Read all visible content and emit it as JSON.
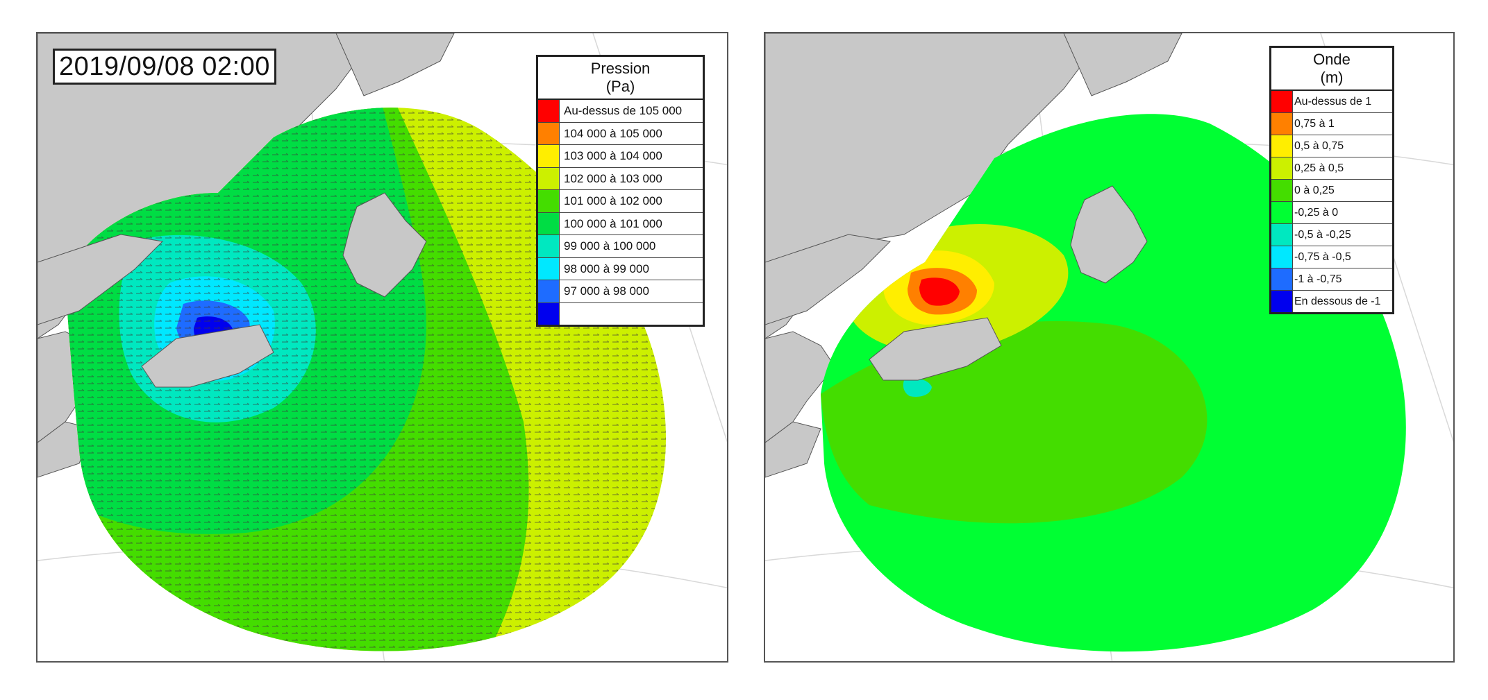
{
  "left_panel": {
    "timestamp": "2019/09/08 02:00",
    "legend": {
      "title_line1": "Pression",
      "title_line2": "(Pa)",
      "items": [
        {
          "label": "Au-dessus de 105 000",
          "color": "#ff0000"
        },
        {
          "label": "104 000 à 105 000",
          "color": "#ff8000"
        },
        {
          "label": "103 000 à 104 000",
          "color": "#ffee00"
        },
        {
          "label": "102 000 à 103 000",
          "color": "#ccf000"
        },
        {
          "label": "101 000 à 102 000",
          "color": "#44dd00"
        },
        {
          "label": "100 000 à 101 000",
          "color": "#00dd44"
        },
        {
          "label": "99 000 à 100 000",
          "color": "#00e8c0"
        },
        {
          "label": "98 000 à 99 000",
          "color": "#00e8ff"
        },
        {
          "label": "97 000 à 98 000",
          "color": "#1e6cff"
        },
        {
          "label": "",
          "color": "#0000ee"
        }
      ]
    }
  },
  "right_panel": {
    "legend": {
      "title_line1": "Onde",
      "title_line2": "(m)",
      "items": [
        {
          "label": "Au-dessus de 1",
          "color": "#ff0000"
        },
        {
          "label": "0,75 à 1",
          "color": "#ff8000"
        },
        {
          "label": "0,5 à 0,75",
          "color": "#ffee00"
        },
        {
          "label": "0,25 à 0,5",
          "color": "#ccf000"
        },
        {
          "label": "0 à 0,25",
          "color": "#44dd00"
        },
        {
          "label": "-0,25 à 0",
          "color": "#00ff33"
        },
        {
          "label": "-0,5 à -0,25",
          "color": "#00e8c0"
        },
        {
          "label": "-0,75 à -0,5",
          "color": "#00e8ff"
        },
        {
          "label": "-1 à -0,75",
          "color": "#1e6cff"
        },
        {
          "label": "En dessous de -1",
          "color": "#0000ee"
        }
      ]
    }
  },
  "colors": {
    "land": "#c8c8c8",
    "graticule": "#d8d8d8",
    "wind_vectors": "#3a3a3a"
  }
}
